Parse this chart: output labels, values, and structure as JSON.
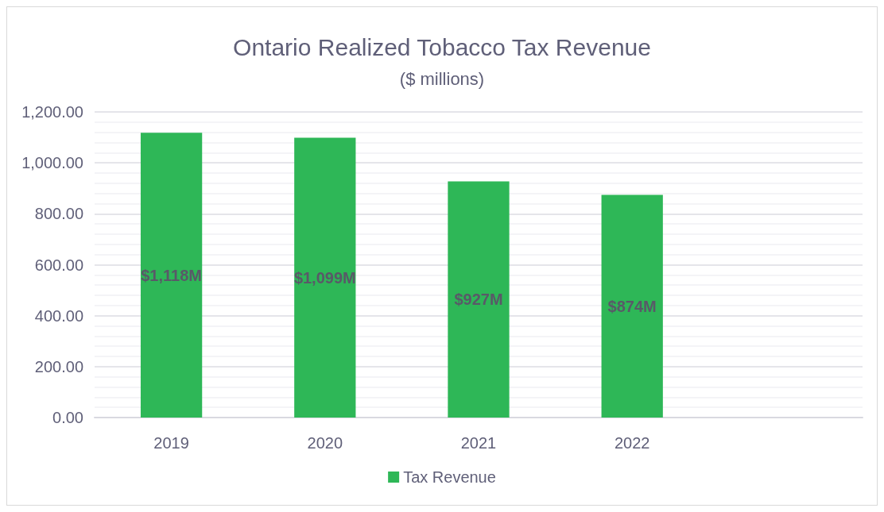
{
  "chart_data": {
    "type": "bar",
    "title": "Ontario Realized Tobacco Tax Revenue",
    "subtitle": "($ millions)",
    "categories": [
      "2019",
      "2020",
      "2021",
      "2022",
      null
    ],
    "series": [
      {
        "name": "Tax Revenue",
        "color": "#2eb757",
        "values": [
          1118,
          1099,
          927,
          874,
          null
        ],
        "value_labels": [
          "$1,118M",
          "$1,099M",
          "$927M",
          "$874M",
          null
        ]
      }
    ],
    "ylim": [
      0,
      1200
    ],
    "yticks": [
      {
        "value": 0,
        "label": "0.00"
      },
      {
        "value": 200,
        "label": "200.00"
      },
      {
        "value": 400,
        "label": "400.00"
      },
      {
        "value": 600,
        "label": "600.00"
      },
      {
        "value": 800,
        "label": "800.00"
      },
      {
        "value": 1000,
        "label": "1,000.00"
      },
      {
        "value": 1200,
        "label": "1,200.00"
      }
    ],
    "grid": "y",
    "legend": "bottom"
  }
}
